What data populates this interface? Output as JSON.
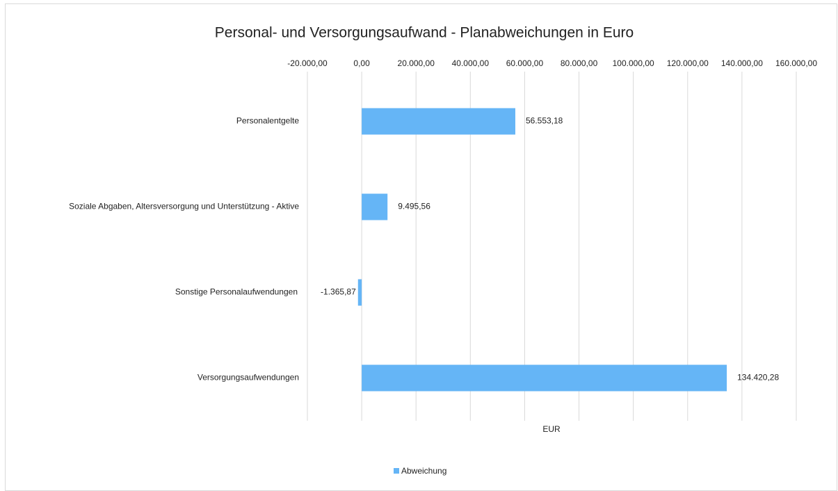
{
  "chart_data": {
    "type": "bar",
    "orientation": "horizontal",
    "title": "Personal- und Versorgungsaufwand - Planabweichungen in Euro",
    "x_label": "EUR",
    "categories": [
      "Personalentgelte",
      "Soziale Abgaben, Altersversorgung und Unterstützung - Aktive",
      "Sonstige Personalaufwendungen",
      "Versorgungsaufwendungen"
    ],
    "series": [
      {
        "name": "Abweichung",
        "color": "#65b5f6",
        "values": [
          56553.18,
          9495.56,
          -1365.87,
          134420.28
        ],
        "value_labels": [
          "56.553,18",
          "9.495,56",
          "-1.365,87",
          "134.420,28"
        ]
      }
    ],
    "xlim": [
      -20000,
      160000
    ],
    "xticks": [
      {
        "value": -20000,
        "label": "-20.000,00"
      },
      {
        "value": 0,
        "label": "0,00"
      },
      {
        "value": 20000,
        "label": "20.000,00"
      },
      {
        "value": 40000,
        "label": "40.000,00"
      },
      {
        "value": 60000,
        "label": "60.000,00"
      },
      {
        "value": 80000,
        "label": "80.000,00"
      },
      {
        "value": 100000,
        "label": "100.000,00"
      },
      {
        "value": 120000,
        "label": "120.000,00"
      },
      {
        "value": 140000,
        "label": "140.000,00"
      },
      {
        "value": 160000,
        "label": "160.000,00"
      }
    ],
    "grid": true,
    "legend": "bottom"
  }
}
